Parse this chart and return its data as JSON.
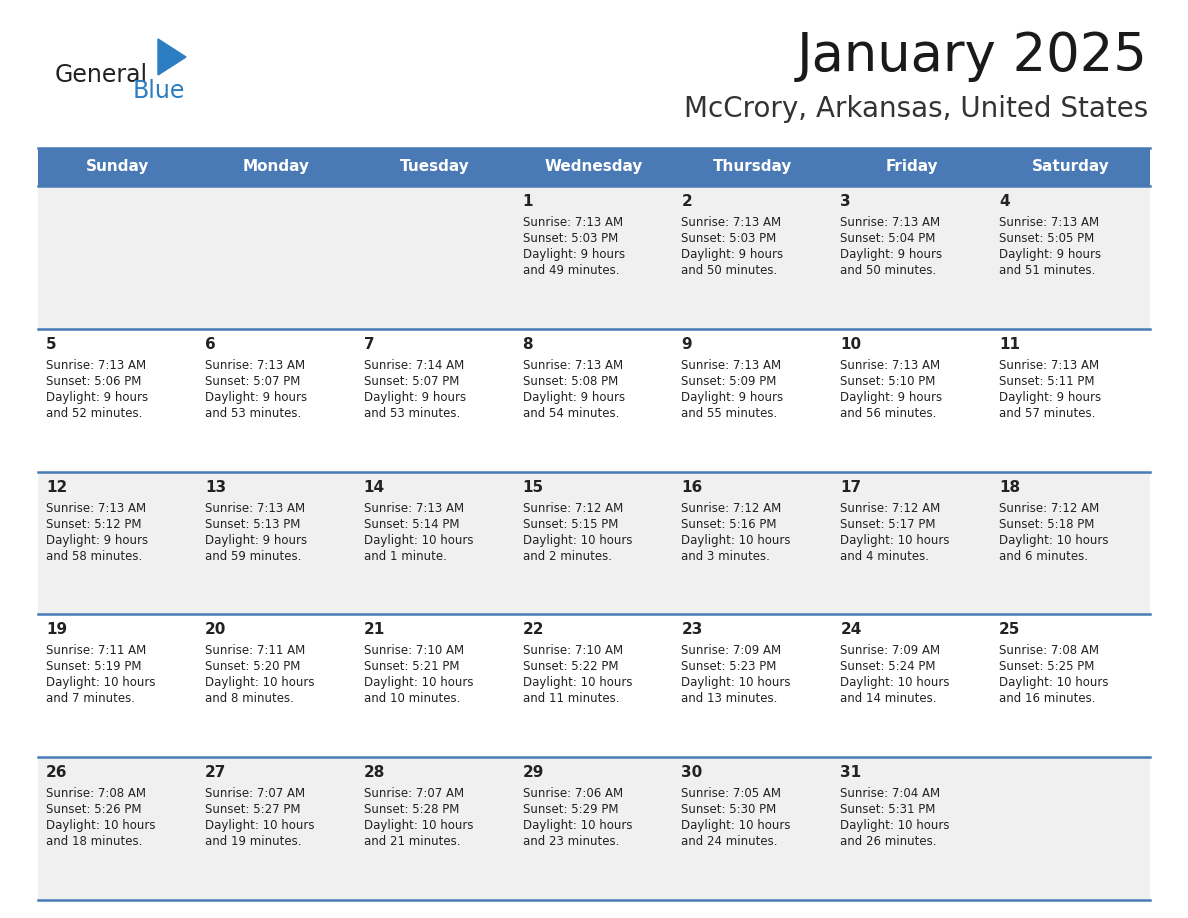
{
  "title": "January 2025",
  "subtitle": "McCrory, Arkansas, United States",
  "header_bg": "#4a7ab5",
  "header_text_color": "#ffffff",
  "cell_bg_odd": "#f0f0f0",
  "cell_bg_even": "#ffffff",
  "day_number_color": "#222222",
  "info_text_color": "#222222",
  "separator_color": "#4a7ab5",
  "days_of_week": [
    "Sunday",
    "Monday",
    "Tuesday",
    "Wednesday",
    "Thursday",
    "Friday",
    "Saturday"
  ],
  "calendar": [
    [
      {
        "day": 0,
        "sunrise": "",
        "sunset": "",
        "daylight": ""
      },
      {
        "day": 0,
        "sunrise": "",
        "sunset": "",
        "daylight": ""
      },
      {
        "day": 0,
        "sunrise": "",
        "sunset": "",
        "daylight": ""
      },
      {
        "day": 1,
        "sunrise": "7:13 AM",
        "sunset": "5:03 PM",
        "daylight": "9 hours\nand 49 minutes."
      },
      {
        "day": 2,
        "sunrise": "7:13 AM",
        "sunset": "5:03 PM",
        "daylight": "9 hours\nand 50 minutes."
      },
      {
        "day": 3,
        "sunrise": "7:13 AM",
        "sunset": "5:04 PM",
        "daylight": "9 hours\nand 50 minutes."
      },
      {
        "day": 4,
        "sunrise": "7:13 AM",
        "sunset": "5:05 PM",
        "daylight": "9 hours\nand 51 minutes."
      }
    ],
    [
      {
        "day": 5,
        "sunrise": "7:13 AM",
        "sunset": "5:06 PM",
        "daylight": "9 hours\nand 52 minutes."
      },
      {
        "day": 6,
        "sunrise": "7:13 AM",
        "sunset": "5:07 PM",
        "daylight": "9 hours\nand 53 minutes."
      },
      {
        "day": 7,
        "sunrise": "7:14 AM",
        "sunset": "5:07 PM",
        "daylight": "9 hours\nand 53 minutes."
      },
      {
        "day": 8,
        "sunrise": "7:13 AM",
        "sunset": "5:08 PM",
        "daylight": "9 hours\nand 54 minutes."
      },
      {
        "day": 9,
        "sunrise": "7:13 AM",
        "sunset": "5:09 PM",
        "daylight": "9 hours\nand 55 minutes."
      },
      {
        "day": 10,
        "sunrise": "7:13 AM",
        "sunset": "5:10 PM",
        "daylight": "9 hours\nand 56 minutes."
      },
      {
        "day": 11,
        "sunrise": "7:13 AM",
        "sunset": "5:11 PM",
        "daylight": "9 hours\nand 57 minutes."
      }
    ],
    [
      {
        "day": 12,
        "sunrise": "7:13 AM",
        "sunset": "5:12 PM",
        "daylight": "9 hours\nand 58 minutes."
      },
      {
        "day": 13,
        "sunrise": "7:13 AM",
        "sunset": "5:13 PM",
        "daylight": "9 hours\nand 59 minutes."
      },
      {
        "day": 14,
        "sunrise": "7:13 AM",
        "sunset": "5:14 PM",
        "daylight": "10 hours\nand 1 minute."
      },
      {
        "day": 15,
        "sunrise": "7:12 AM",
        "sunset": "5:15 PM",
        "daylight": "10 hours\nand 2 minutes."
      },
      {
        "day": 16,
        "sunrise": "7:12 AM",
        "sunset": "5:16 PM",
        "daylight": "10 hours\nand 3 minutes."
      },
      {
        "day": 17,
        "sunrise": "7:12 AM",
        "sunset": "5:17 PM",
        "daylight": "10 hours\nand 4 minutes."
      },
      {
        "day": 18,
        "sunrise": "7:12 AM",
        "sunset": "5:18 PM",
        "daylight": "10 hours\nand 6 minutes."
      }
    ],
    [
      {
        "day": 19,
        "sunrise": "7:11 AM",
        "sunset": "5:19 PM",
        "daylight": "10 hours\nand 7 minutes."
      },
      {
        "day": 20,
        "sunrise": "7:11 AM",
        "sunset": "5:20 PM",
        "daylight": "10 hours\nand 8 minutes."
      },
      {
        "day": 21,
        "sunrise": "7:10 AM",
        "sunset": "5:21 PM",
        "daylight": "10 hours\nand 10 minutes."
      },
      {
        "day": 22,
        "sunrise": "7:10 AM",
        "sunset": "5:22 PM",
        "daylight": "10 hours\nand 11 minutes."
      },
      {
        "day": 23,
        "sunrise": "7:09 AM",
        "sunset": "5:23 PM",
        "daylight": "10 hours\nand 13 minutes."
      },
      {
        "day": 24,
        "sunrise": "7:09 AM",
        "sunset": "5:24 PM",
        "daylight": "10 hours\nand 14 minutes."
      },
      {
        "day": 25,
        "sunrise": "7:08 AM",
        "sunset": "5:25 PM",
        "daylight": "10 hours\nand 16 minutes."
      }
    ],
    [
      {
        "day": 26,
        "sunrise": "7:08 AM",
        "sunset": "5:26 PM",
        "daylight": "10 hours\nand 18 minutes."
      },
      {
        "day": 27,
        "sunrise": "7:07 AM",
        "sunset": "5:27 PM",
        "daylight": "10 hours\nand 19 minutes."
      },
      {
        "day": 28,
        "sunrise": "7:07 AM",
        "sunset": "5:28 PM",
        "daylight": "10 hours\nand 21 minutes."
      },
      {
        "day": 29,
        "sunrise": "7:06 AM",
        "sunset": "5:29 PM",
        "daylight": "10 hours\nand 23 minutes."
      },
      {
        "day": 30,
        "sunrise": "7:05 AM",
        "sunset": "5:30 PM",
        "daylight": "10 hours\nand 24 minutes."
      },
      {
        "day": 31,
        "sunrise": "7:04 AM",
        "sunset": "5:31 PM",
        "daylight": "10 hours\nand 26 minutes."
      },
      {
        "day": 0,
        "sunrise": "",
        "sunset": "",
        "daylight": ""
      }
    ]
  ],
  "logo_text1": "General",
  "logo_text2": "Blue",
  "logo_text1_color": "#222222",
  "logo_text2_color": "#2b7ec1",
  "logo_triangle_color": "#2b7ec1",
  "title_fontsize": 38,
  "subtitle_fontsize": 20,
  "header_fontsize": 11,
  "day_number_fontsize": 11,
  "info_fontsize": 8.5
}
